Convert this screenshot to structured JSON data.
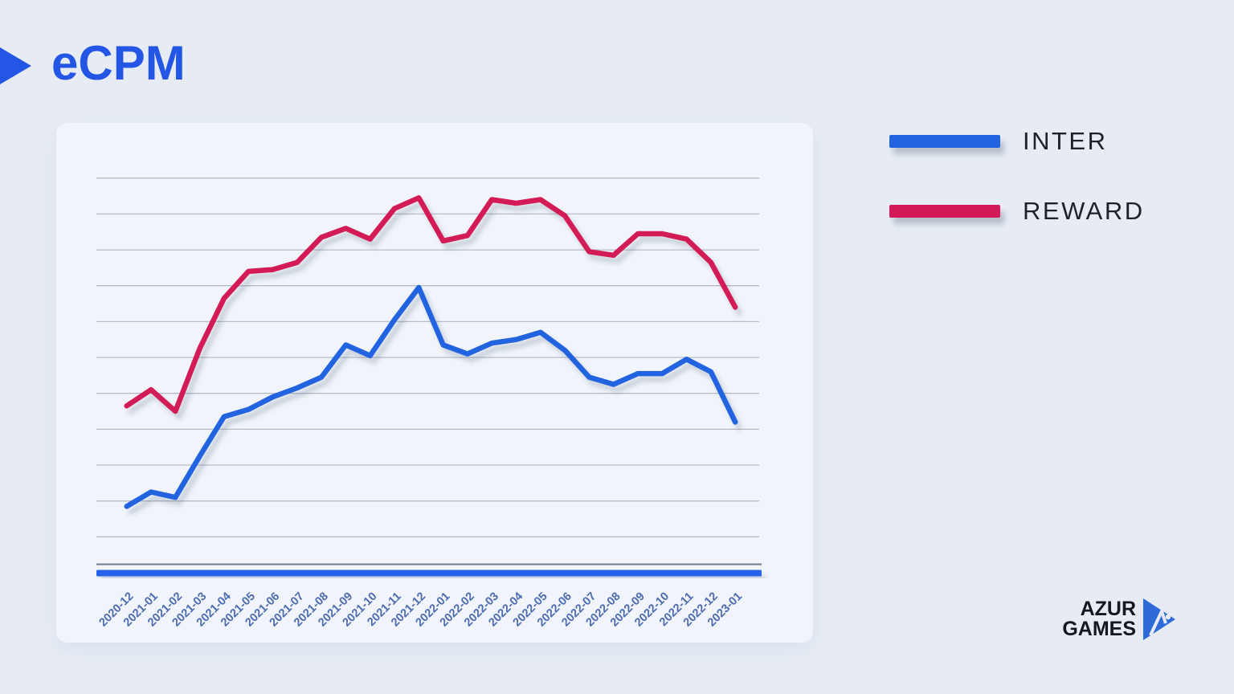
{
  "title": "eCPM",
  "logo": {
    "line1": "AZUR",
    "line2": "GAMES"
  },
  "colors": {
    "page_bg": "#e7ecf4",
    "panel_bg": "#f1f4fa",
    "accent_blue": "#2356e4",
    "line_blue": "#2463e0",
    "line_red": "#d31a56",
    "axis_bar_blue": "#2563eb",
    "gridline": "#b6bdc9",
    "axis_line": "#6f7a8a",
    "tick_label": "#4d6cb0",
    "legend_text": "#1d212a",
    "logo_text": "#14171e",
    "logo_mark_blue": "#2e6ad8"
  },
  "chart_data": {
    "type": "line",
    "title": "eCPM",
    "categories": [
      "2020-12",
      "2021-01",
      "2021-02",
      "2021-03",
      "2021-04",
      "2021-05",
      "2021-06",
      "2021-07",
      "2021-08",
      "2021-09",
      "2021-10",
      "2021-11",
      "2021-12",
      "2022-01",
      "2022-02",
      "2022-03",
      "2022-04",
      "2022-05",
      "2022-06",
      "2022-07",
      "2022-08",
      "2022-09",
      "2022-10",
      "2022-11",
      "2022-12",
      "2023-01"
    ],
    "series": [
      {
        "name": "INTER",
        "color": "#2463e0",
        "values": [
          1.85,
          2.25,
          2.1,
          3.25,
          4.35,
          4.55,
          4.9,
          5.15,
          5.45,
          6.35,
          6.05,
          7.05,
          7.95,
          6.35,
          6.1,
          6.4,
          6.5,
          6.7,
          6.2,
          5.45,
          5.25,
          5.55,
          5.55,
          5.95,
          5.6,
          4.2
        ]
      },
      {
        "name": "REWARD",
        "color": "#d31a56",
        "values": [
          4.65,
          5.1,
          4.5,
          6.25,
          7.65,
          8.4,
          8.45,
          8.65,
          9.35,
          9.6,
          9.3,
          10.15,
          10.45,
          9.25,
          9.4,
          10.4,
          10.3,
          10.4,
          9.95,
          8.95,
          8.85,
          9.45,
          9.45,
          9.3,
          8.65,
          7.4
        ]
      }
    ],
    "xlabel": "",
    "ylabel": "",
    "ylim": [
      0,
      12
    ],
    "y_tick_labels_shown": false,
    "value_unit": "gridline-steps (no numeric y axis labels shown)",
    "gridlines": "horizontal",
    "x_label_rotation": -45,
    "legend_position": "right"
  }
}
